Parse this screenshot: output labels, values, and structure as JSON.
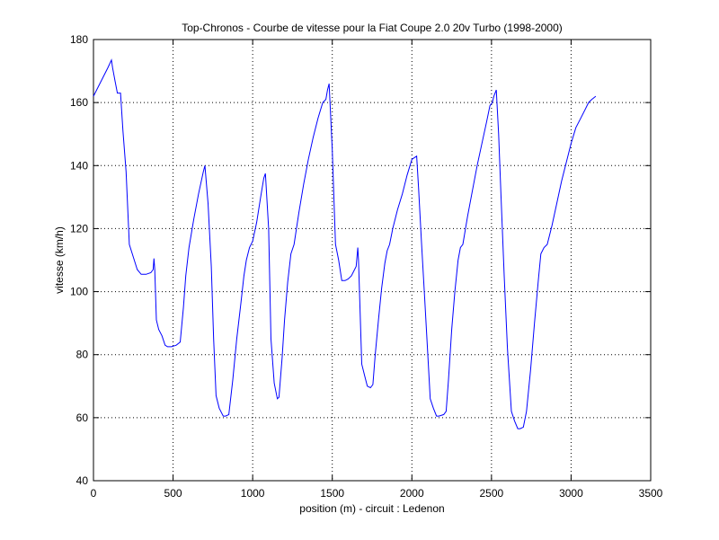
{
  "chart_data": {
    "type": "line",
    "title": "Top-Chronos - Courbe de vitesse pour la Fiat Coupe 2.0 20v Turbo (1998-2000)",
    "xlabel": "position (m) - circuit : Ledenon",
    "ylabel": "vitesse (km/h)",
    "xlim": [
      0,
      3500
    ],
    "ylim": [
      40,
      180
    ],
    "x_ticks": [
      0,
      500,
      1000,
      1500,
      2000,
      2500,
      3000,
      3500
    ],
    "y_ticks": [
      40,
      60,
      80,
      100,
      120,
      140,
      160,
      180
    ],
    "x_tick_labels": [
      "0",
      "500",
      "1000",
      "1500",
      "2000",
      "2500",
      "3000",
      "3500"
    ],
    "y_tick_labels": [
      "40",
      "60",
      "80",
      "100",
      "120",
      "140",
      "160",
      "180"
    ],
    "grid": true,
    "line_color": "#0000ff",
    "series": [
      {
        "x": [
          0,
          30,
          60,
          90,
          113,
          120,
          135,
          150,
          170,
          185,
          205,
          225,
          250,
          275,
          300,
          330,
          360,
          375,
          380,
          385,
          395,
          410,
          430,
          450,
          465,
          490,
          520,
          545,
          565,
          580,
          600,
          630,
          660,
          690,
          700,
          720,
          740,
          755,
          770,
          790,
          815,
          830,
          850,
          875,
          900,
          925,
          945,
          960,
          980,
          1000,
          1025,
          1050,
          1070,
          1080,
          1100,
          1115,
          1135,
          1155,
          1165,
          1185,
          1200,
          1220,
          1240,
          1260,
          1290,
          1320,
          1350,
          1380,
          1410,
          1440,
          1460,
          1470,
          1480,
          1500,
          1520,
          1540,
          1560,
          1580,
          1600,
          1620,
          1650,
          1660,
          1665,
          1685,
          1705,
          1720,
          1740,
          1755,
          1770,
          1790,
          1810,
          1830,
          1845,
          1860,
          1880,
          1910,
          1940,
          1970,
          2000,
          2030,
          2042,
          2060,
          2080,
          2100,
          2115,
          2135,
          2155,
          2170,
          2200,
          2215,
          2230,
          2250,
          2270,
          2290,
          2305,
          2320,
          2350,
          2380,
          2410,
          2440,
          2470,
          2490,
          2505,
          2515,
          2530,
          2545,
          2560,
          2580,
          2600,
          2625,
          2645,
          2665,
          2680,
          2700,
          2720,
          2745,
          2770,
          2795,
          2810,
          2830,
          2850,
          2880,
          2910,
          2940,
          2970,
          3000,
          3030,
          3060,
          3090,
          3110,
          3130,
          3155
        ],
        "y": [
          162,
          165,
          168,
          171,
          173.5,
          171,
          167,
          163,
          163,
          151,
          138,
          115,
          111,
          107,
          105.5,
          105.5,
          106,
          107,
          110.5,
          107,
          91,
          88,
          86,
          83,
          82.5,
          82.5,
          83,
          84,
          95,
          105,
          114,
          123,
          131,
          138,
          140,
          128,
          108,
          85,
          67,
          63,
          60.5,
          60.5,
          61,
          72,
          85,
          96,
          105,
          110,
          114,
          116,
          122,
          130,
          136,
          137.5,
          120,
          85,
          71,
          66,
          66.5,
          79,
          91,
          103,
          112,
          115,
          125,
          134,
          142,
          149,
          155,
          160,
          161,
          164,
          166,
          145,
          115,
          110,
          103.5,
          103.5,
          104,
          105,
          108,
          114,
          110,
          77,
          73,
          70,
          69.5,
          70.5,
          80,
          91,
          101,
          109,
          113,
          115,
          120,
          126,
          131,
          137,
          142,
          143,
          133,
          116,
          98,
          80,
          66,
          63,
          60.5,
          60.5,
          61,
          62,
          72,
          88,
          100,
          110,
          114,
          115,
          124,
          132,
          140,
          147,
          154,
          159,
          160,
          162,
          164,
          150,
          130,
          105,
          82,
          62,
          59,
          56.5,
          56.5,
          57,
          62,
          75,
          90,
          104,
          112,
          114,
          115,
          121,
          128,
          135,
          141,
          147,
          152,
          155,
          158,
          160,
          161,
          162
        ]
      }
    ]
  }
}
